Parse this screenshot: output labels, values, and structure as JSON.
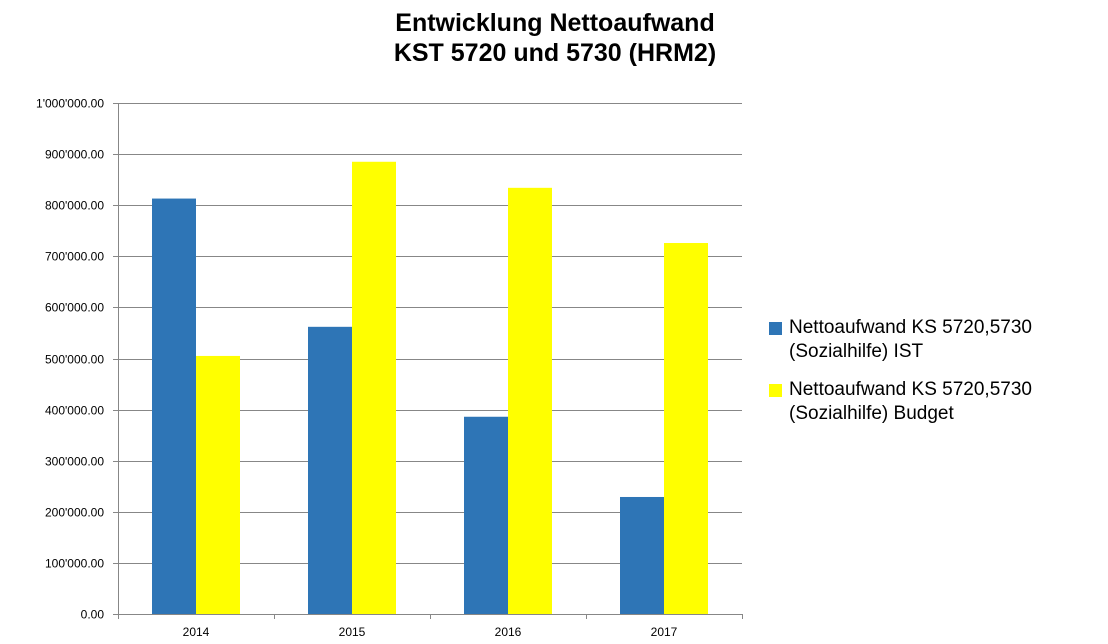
{
  "title_lines": [
    "Entwicklung Nettoaufwand",
    "KST 5720 und 5730 (HRM2)"
  ],
  "chart_data": {
    "type": "bar",
    "title": "Entwicklung Nettoaufwand KST 5720 und 5730 (HRM2)",
    "categories": [
      "2014",
      "2015",
      "2016",
      "2017"
    ],
    "series": [
      {
        "name": "Nettoaufwand KS 5720,5730 (Sozialhilfe) IST",
        "color": "#2E75B6",
        "values": [
          813000,
          562000,
          386000,
          229000
        ]
      },
      {
        "name": "Nettoaufwand KS 5720,5730 (Sozialhilfe) Budget",
        "color": "#FFFF00",
        "values": [
          505000,
          885000,
          834000,
          726000
        ]
      }
    ],
    "ylim": [
      0,
      1000000
    ],
    "yticks": [
      0,
      100000,
      200000,
      300000,
      400000,
      500000,
      600000,
      700000,
      800000,
      900000,
      1000000
    ],
    "ytick_labels": [
      "0.00",
      "100'000.00",
      "200'000.00",
      "300'000.00",
      "400'000.00",
      "500'000.00",
      "600'000.00",
      "700'000.00",
      "800'000.00",
      "900'000.00",
      "1'000'000.00"
    ],
    "grid": true,
    "legend_position": "right",
    "xlabel": "",
    "ylabel": ""
  },
  "legend": [
    {
      "label": "Nettoaufwand KS 5720,5730\n(Sozialhilfe) IST",
      "color": "#2E75B6"
    },
    {
      "label": "Nettoaufwand KS 5720,5730\n(Sozialhilfe) Budget",
      "color": "#FFFF00"
    }
  ]
}
